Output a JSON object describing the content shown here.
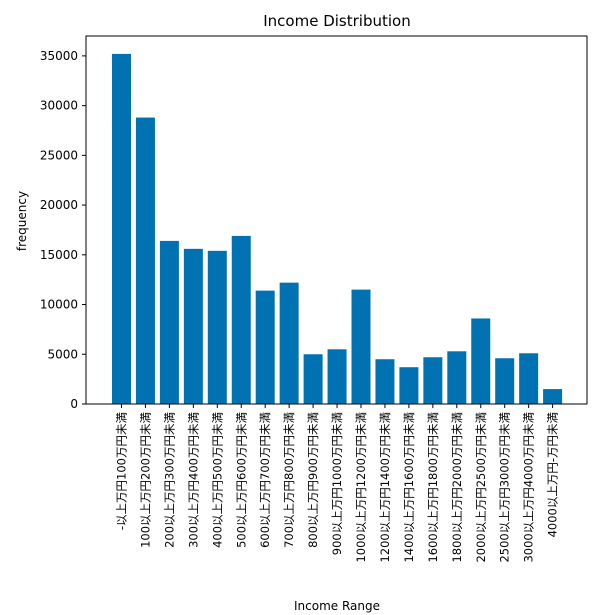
{
  "chart_data": {
    "type": "bar",
    "title": "Income Distribution",
    "xlabel": "Income Range",
    "ylabel": "frequency",
    "categories": [
      "-以上万円100万円未満",
      "100以上万円200万円未満",
      "200以上万円300万円未満",
      "300以上万円400万円未満",
      "400以上万円500万円未満",
      "500以上万円600万円未満",
      "600以上万円700万円未満",
      "700以上万円800万円未満",
      "800以上万円900万円未満",
      "900以上万円1000万円未満",
      "1000以上万円1200万円未満",
      "1200以上万円1400万円未満",
      "1400以上万円1600万円未満",
      "1600以上万円1800万円未満",
      "1800以上万円2000万円未満",
      "2000以上万円2500万円未満",
      "2500以上万円3000万円未満",
      "3000以上万円4000万円未満",
      "4000以上万円-万円未満"
    ],
    "values": [
      35200,
      28800,
      16400,
      15600,
      15400,
      16900,
      11400,
      12200,
      5000,
      5500,
      11500,
      4500,
      3700,
      4700,
      5300,
      8600,
      4600,
      5100,
      1500
    ],
    "ylim": [
      0,
      37000
    ],
    "yticks": [
      0,
      5000,
      10000,
      15000,
      20000,
      25000,
      30000,
      35000
    ],
    "ytick_labels": [
      "0",
      "5000",
      "10000",
      "15000",
      "20000",
      "25000",
      "30000",
      "35000"
    ],
    "bar_color": "#0072b2",
    "grid": false,
    "legend": "none"
  }
}
